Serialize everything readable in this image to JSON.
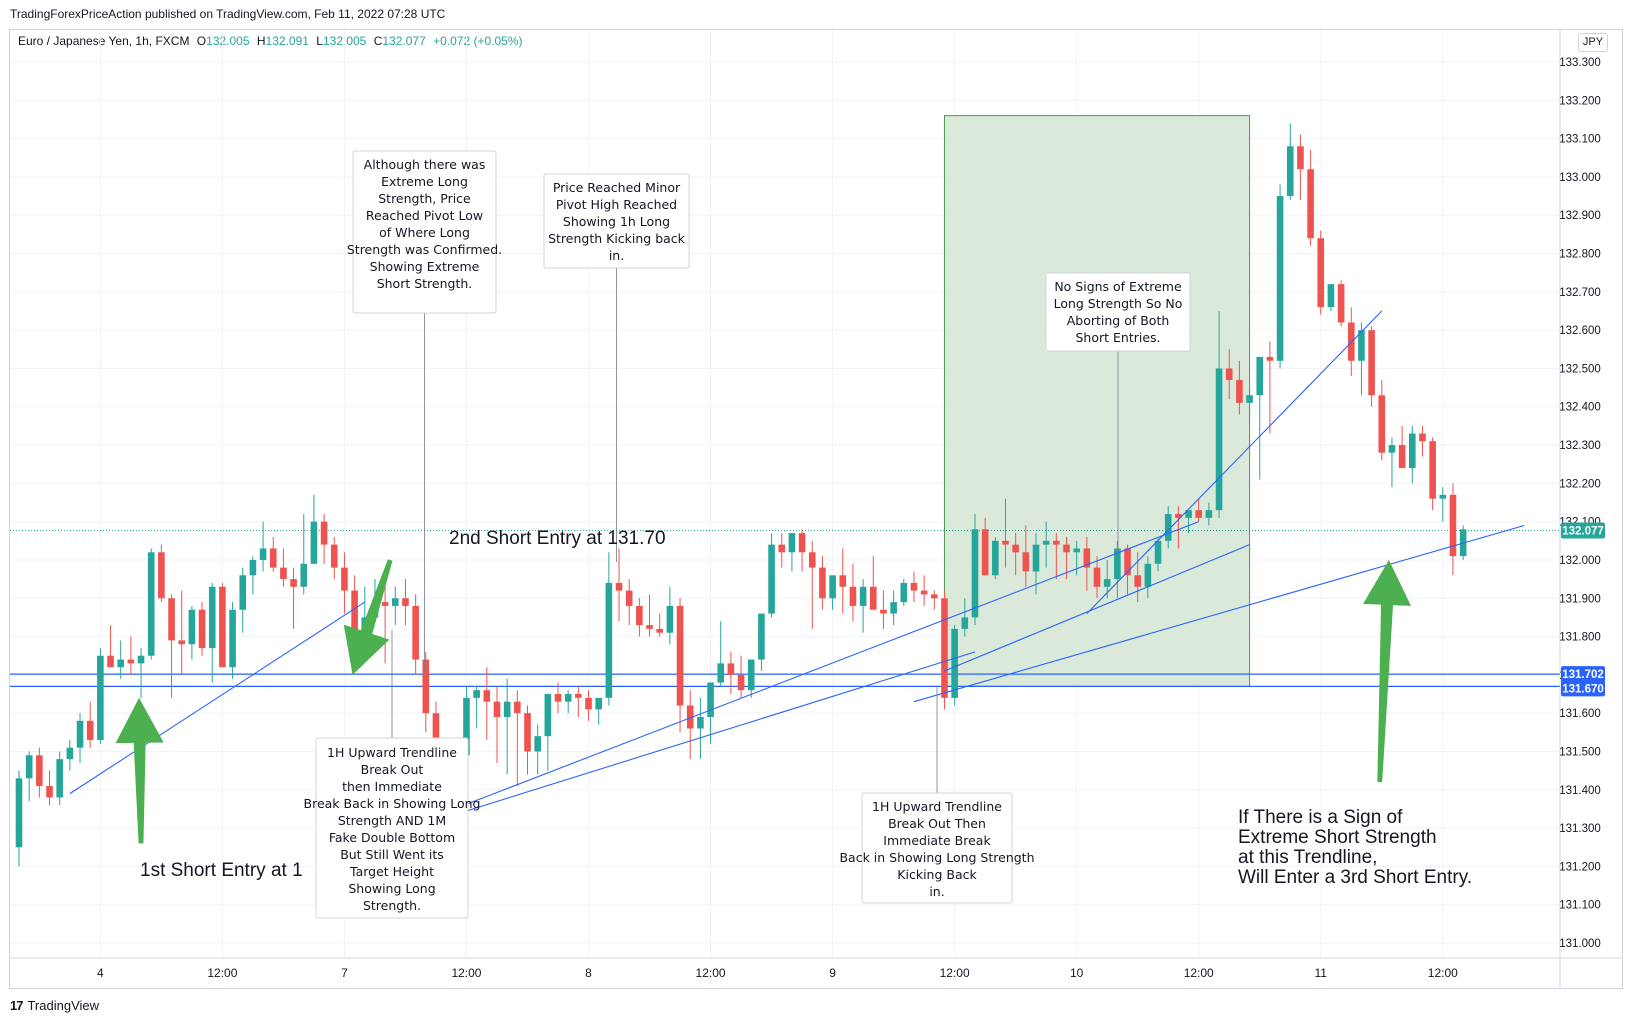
{
  "header": {
    "publisher_line": "TradingForexPriceAction published on TradingView.com, Feb 11, 2022 07:28 UTC"
  },
  "legend": {
    "symbol": "Euro / Japanese Yen, 1h, FXCM",
    "o_label": "O",
    "o_value": "132.005",
    "h_label": "H",
    "h_value": "132.091",
    "l_label": "L",
    "l_value": "132.005",
    "c_label": "C",
    "c_value": "132.077",
    "change": "+0.072 (+0.05%)"
  },
  "currency_button": "JPY",
  "footer": {
    "logo": "17",
    "brand": "TradingView"
  },
  "colors": {
    "up": "#26a69a",
    "down": "#ef5350",
    "line": "#2962ff",
    "arrow": "#4caf50",
    "zone": "#d7e7d6"
  },
  "chart_data": {
    "type": "candlestick",
    "title": "Euro / Japanese Yen, 1h, FXCM",
    "y_range": [
      131.0,
      133.35
    ],
    "y_ticks": [
      131.0,
      131.1,
      131.2,
      131.3,
      131.4,
      131.5,
      131.6,
      131.7,
      131.8,
      131.9,
      132.0,
      132.1,
      132.2,
      132.3,
      132.4,
      132.5,
      132.6,
      132.7,
      132.8,
      132.9,
      133.0,
      133.1,
      133.2,
      133.3
    ],
    "y_tick_labels": [
      "131.000",
      "131.100",
      "131.200",
      "131.300",
      "131.400",
      "131.500",
      "131.600",
      "131.700",
      "131.800",
      "131.900",
      "132.000",
      "132.100",
      "132.200",
      "132.300",
      "132.400",
      "132.500",
      "132.600",
      "132.700",
      "132.800",
      "132.900",
      "133.000",
      "133.100",
      "133.200",
      "133.300"
    ],
    "x_range": [
      0,
      147
    ],
    "x_ticks": [
      8,
      20,
      32,
      44,
      56,
      68,
      80,
      92,
      104,
      116,
      128,
      140
    ],
    "x_tick_labels": [
      "4",
      "12:00",
      "7",
      "12:00",
      "8",
      "12:00",
      "9",
      "12:00",
      "10",
      "12:00",
      "11",
      "12:00"
    ],
    "candles": [
      [
        131.25,
        131.45,
        131.2,
        131.43
      ],
      [
        131.43,
        131.5,
        131.37,
        131.49
      ],
      [
        131.49,
        131.51,
        131.38,
        131.41
      ],
      [
        131.41,
        131.45,
        131.36,
        131.38
      ],
      [
        131.38,
        131.5,
        131.36,
        131.48
      ],
      [
        131.48,
        131.53,
        131.45,
        131.51
      ],
      [
        131.51,
        131.6,
        131.47,
        131.58
      ],
      [
        131.58,
        131.63,
        131.51,
        131.53
      ],
      [
        131.53,
        131.77,
        131.52,
        131.75
      ],
      [
        131.75,
        131.83,
        131.72,
        131.72
      ],
      [
        131.72,
        131.79,
        131.69,
        131.74
      ],
      [
        131.74,
        131.8,
        131.7,
        131.73
      ],
      [
        131.73,
        131.77,
        131.64,
        131.75
      ],
      [
        131.75,
        132.03,
        131.74,
        132.02
      ],
      [
        132.02,
        132.04,
        131.89,
        131.9
      ],
      [
        131.9,
        131.91,
        131.64,
        131.79
      ],
      [
        131.79,
        131.92,
        131.7,
        131.78
      ],
      [
        131.78,
        131.88,
        131.74,
        131.87
      ],
      [
        131.87,
        131.89,
        131.75,
        131.77
      ],
      [
        131.77,
        131.94,
        131.68,
        131.93
      ],
      [
        131.93,
        131.94,
        131.73,
        131.72
      ],
      [
        131.72,
        131.89,
        131.69,
        131.87
      ],
      [
        131.87,
        131.98,
        131.81,
        131.96
      ],
      [
        131.96,
        132.01,
        131.91,
        132.0
      ],
      [
        132.0,
        132.1,
        131.97,
        132.03
      ],
      [
        132.03,
        132.06,
        131.97,
        131.98
      ],
      [
        131.98,
        132.03,
        131.93,
        131.95
      ],
      [
        131.95,
        131.98,
        131.82,
        131.93
      ],
      [
        131.93,
        132.12,
        131.91,
        131.99
      ],
      [
        131.99,
        132.17,
        131.99,
        132.1
      ],
      [
        132.1,
        132.12,
        131.99,
        132.04
      ],
      [
        132.04,
        132.06,
        131.95,
        131.98
      ],
      [
        131.98,
        132.02,
        131.86,
        131.92
      ],
      [
        131.92,
        131.96,
        131.75,
        131.78
      ],
      [
        131.78,
        131.93,
        131.74,
        131.85
      ],
      [
        131.85,
        131.95,
        131.84,
        131.89
      ],
      [
        131.89,
        131.93,
        131.73,
        131.88
      ],
      [
        131.88,
        131.93,
        131.83,
        131.9
      ],
      [
        131.9,
        131.95,
        131.83,
        131.88
      ],
      [
        131.88,
        131.91,
        131.7,
        131.74
      ],
      [
        131.74,
        131.76,
        131.55,
        131.6
      ],
      [
        131.6,
        131.63,
        131.28,
        131.32
      ],
      [
        131.32,
        131.37,
        131.27,
        131.37
      ],
      [
        131.37,
        131.52,
        131.34,
        131.49
      ],
      [
        131.49,
        131.67,
        131.4,
        131.64
      ],
      [
        131.64,
        131.67,
        131.56,
        131.66
      ],
      [
        131.66,
        131.72,
        131.53,
        131.63
      ],
      [
        131.63,
        131.67,
        131.47,
        131.59
      ],
      [
        131.59,
        131.69,
        131.44,
        131.63
      ],
      [
        131.63,
        131.66,
        131.41,
        131.6
      ],
      [
        131.6,
        131.62,
        131.44,
        131.5
      ],
      [
        131.5,
        131.57,
        131.44,
        131.54
      ],
      [
        131.54,
        131.65,
        131.45,
        131.65
      ],
      [
        131.65,
        131.68,
        131.6,
        131.63
      ],
      [
        131.63,
        131.66,
        131.6,
        131.65
      ],
      [
        131.65,
        131.67,
        131.59,
        131.64
      ],
      [
        131.64,
        131.66,
        131.58,
        131.61
      ],
      [
        131.61,
        131.62,
        131.57,
        131.64
      ],
      [
        131.64,
        132.02,
        131.62,
        131.94
      ],
      [
        131.94,
        132.03,
        131.84,
        131.92
      ],
      [
        131.92,
        131.95,
        131.83,
        131.88
      ],
      [
        131.88,
        131.9,
        131.8,
        131.83
      ],
      [
        131.83,
        131.91,
        131.8,
        131.82
      ],
      [
        131.82,
        131.86,
        131.8,
        131.81
      ],
      [
        131.81,
        131.93,
        131.78,
        131.88
      ],
      [
        131.88,
        131.9,
        131.55,
        131.62
      ],
      [
        131.62,
        131.66,
        131.48,
        131.56
      ],
      [
        131.56,
        131.64,
        131.48,
        131.59
      ],
      [
        131.59,
        131.68,
        131.52,
        131.68
      ],
      [
        131.68,
        131.84,
        131.67,
        131.73
      ],
      [
        131.73,
        131.76,
        131.65,
        131.7
      ],
      [
        131.7,
        131.75,
        131.64,
        131.66
      ],
      [
        131.66,
        131.74,
        131.64,
        131.74
      ],
      [
        131.74,
        131.84,
        131.71,
        131.86
      ],
      [
        131.86,
        132.07,
        131.85,
        132.04
      ],
      [
        132.04,
        132.07,
        131.98,
        132.02
      ],
      [
        132.02,
        132.07,
        131.97,
        132.07
      ],
      [
        132.07,
        132.08,
        131.97,
        132.02
      ],
      [
        132.02,
        132.05,
        131.82,
        131.98
      ],
      [
        131.98,
        132.01,
        131.87,
        131.9
      ],
      [
        131.9,
        131.95,
        131.87,
        131.96
      ],
      [
        131.96,
        132.03,
        131.86,
        131.93
      ],
      [
        131.93,
        131.99,
        131.84,
        131.88
      ],
      [
        131.88,
        131.95,
        131.81,
        131.93
      ],
      [
        131.93,
        132.01,
        131.88,
        131.87
      ],
      [
        131.87,
        131.92,
        131.82,
        131.86
      ],
      [
        131.86,
        131.92,
        131.83,
        131.89
      ],
      [
        131.89,
        131.95,
        131.88,
        131.94
      ],
      [
        131.94,
        131.97,
        131.89,
        131.92
      ],
      [
        131.92,
        131.96,
        131.88,
        131.91
      ],
      [
        131.91,
        131.92,
        131.87,
        131.9
      ],
      [
        131.9,
        131.92,
        131.61,
        131.64
      ],
      [
        131.64,
        131.83,
        131.62,
        131.82
      ],
      [
        131.82,
        131.9,
        131.8,
        131.85
      ],
      [
        131.85,
        132.12,
        131.83,
        132.08
      ],
      [
        132.08,
        132.11,
        131.98,
        131.96
      ],
      [
        131.96,
        132.06,
        131.95,
        132.05
      ],
      [
        132.05,
        132.16,
        131.98,
        132.04
      ],
      [
        132.04,
        132.07,
        131.96,
        132.02
      ],
      [
        132.02,
        132.09,
        131.93,
        131.97
      ],
      [
        131.97,
        132.07,
        131.91,
        132.04
      ],
      [
        132.04,
        132.1,
        131.98,
        132.05
      ],
      [
        132.05,
        132.07,
        131.95,
        132.04
      ],
      [
        132.04,
        132.06,
        131.95,
        132.02
      ],
      [
        132.02,
        132.05,
        131.96,
        132.03
      ],
      [
        132.03,
        132.06,
        131.92,
        131.98
      ],
      [
        131.98,
        132.01,
        131.9,
        131.93
      ],
      [
        131.93,
        132.0,
        131.9,
        131.95
      ],
      [
        131.95,
        132.05,
        131.9,
        132.03
      ],
      [
        132.03,
        132.04,
        131.91,
        131.96
      ],
      [
        131.96,
        132.02,
        131.89,
        131.93
      ],
      [
        131.93,
        132.01,
        131.9,
        131.99
      ],
      [
        131.99,
        132.06,
        131.97,
        132.05
      ],
      [
        132.05,
        132.14,
        132.03,
        132.12
      ],
      [
        132.12,
        132.14,
        132.03,
        132.11
      ],
      [
        132.11,
        132.12,
        132.07,
        132.13
      ],
      [
        132.13,
        132.16,
        132.1,
        132.11
      ],
      [
        132.11,
        132.15,
        132.09,
        132.13
      ],
      [
        132.13,
        132.65,
        132.11,
        132.5
      ],
      [
        132.5,
        132.55,
        132.42,
        132.47
      ],
      [
        132.47,
        132.52,
        132.38,
        132.41
      ],
      [
        132.41,
        132.45,
        132.37,
        132.43
      ],
      [
        132.43,
        132.53,
        132.21,
        132.53
      ],
      [
        132.53,
        132.57,
        132.33,
        132.52
      ],
      [
        132.52,
        132.98,
        132.5,
        132.95
      ],
      [
        132.95,
        133.14,
        132.94,
        133.08
      ],
      [
        133.08,
        133.11,
        132.94,
        133.02
      ],
      [
        133.02,
        133.07,
        132.82,
        132.84
      ],
      [
        132.84,
        132.86,
        132.64,
        132.66
      ],
      [
        132.66,
        132.72,
        132.65,
        132.72
      ],
      [
        132.72,
        132.73,
        132.61,
        132.62
      ],
      [
        132.62,
        132.66,
        132.48,
        132.52
      ],
      [
        132.52,
        132.62,
        132.43,
        132.6
      ],
      [
        132.6,
        132.61,
        132.4,
        132.43
      ],
      [
        132.43,
        132.47,
        132.26,
        132.28
      ],
      [
        132.28,
        132.32,
        132.19,
        132.3
      ],
      [
        132.3,
        132.35,
        132.24,
        132.24
      ],
      [
        132.24,
        132.35,
        132.2,
        132.33
      ],
      [
        132.33,
        132.35,
        132.27,
        132.31
      ],
      [
        132.31,
        132.32,
        132.13,
        132.16
      ],
      [
        132.16,
        132.19,
        132.1,
        132.17
      ],
      [
        132.17,
        132.2,
        131.96,
        132.01
      ],
      [
        132.01,
        132.09,
        132.0,
        132.08
      ]
    ],
    "last_price_label": "132.077",
    "last_price": 132.077,
    "levels": [
      {
        "value": 131.702,
        "label": "131.702"
      },
      {
        "value": 131.67,
        "label": "131.670"
      }
    ],
    "annotations": [
      "Although there was Extreme Long Strength, Price Reached Pivot Low of Where Long Strength was Confirmed. Showing Extreme Short Strength.",
      "Price Reached Minor Pivot High Reached Showing 1h Long Strength Kicking back in.",
      "No Signs of Extreme Long Strength So No Aborting of Both Short Entries.",
      "1H Upward Trendline Break Out then Immediate Break Back in Showing Long Strength AND 1M Fake Double Bottom But Still Went its Target Height Showing Long Strength.",
      "1H Upward Trendline Break Out Then Immediate Break Back in Showing Long Strength Kicking Back in."
    ],
    "text_notes": [
      "2nd Short Entry at 131.70",
      "1st Short Entry at 1",
      "If There is a Sign of Extreme Short Strength at this Trendline, Will Enter a 3rd Short Entry."
    ],
    "zone": {
      "x_start": 91,
      "x_end": 121,
      "y_low": 131.67,
      "y_high": 133.16
    },
    "trendlines": [
      {
        "x1": 5,
        "y1": 131.39,
        "x2": 34,
        "y2": 131.89
      },
      {
        "x1": 35,
        "y1": 131.27,
        "x2": 116,
        "y2": 132.1
      },
      {
        "x1": 35,
        "y1": 131.27,
        "x2": 94,
        "y2": 131.76
      },
      {
        "x1": 88,
        "y1": 131.63,
        "x2": 148,
        "y2": 132.09
      },
      {
        "x1": 91,
        "y1": 131.71,
        "x2": 121,
        "y2": 132.04
      },
      {
        "x1": 105,
        "y1": 131.86,
        "x2": 134,
        "y2": 132.65
      }
    ],
    "arrows": [
      {
        "tip_x": 11.8,
        "tip_y": 131.64,
        "tail_x": 12.0,
        "tail_y": 131.26,
        "direction": "up"
      },
      {
        "tip_x": 32.8,
        "tip_y": 131.7,
        "tail_x": 36.5,
        "tail_y": 132.0,
        "direction": "down"
      },
      {
        "tip_x": 134.7,
        "tip_y": 132.0,
        "tail_x": 133.8,
        "tail_y": 131.42,
        "direction": "up"
      }
    ]
  }
}
